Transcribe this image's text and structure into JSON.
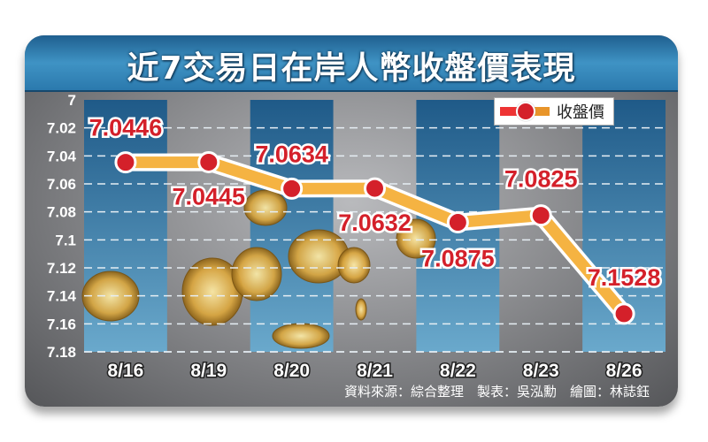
{
  "title": "近7交易日在岸人幣收盤價表現",
  "footer": "資料來源：綜合整理　製表：吳泓勳　繪圖：林誌鈺",
  "colors": {
    "line": "#f5b342",
    "point": "#d4202a",
    "label": "#d4202a",
    "bar": "#2a6c9c",
    "title_bar": "#2b79ad"
  },
  "chart_data": {
    "type": "line",
    "title": "近7交易日在岸人幣收盤價表現",
    "categories": [
      "8/16",
      "8/19",
      "8/20",
      "8/21",
      "8/22",
      "8/23",
      "8/26"
    ],
    "series": [
      {
        "name": "收盤價",
        "values": [
          7.0446,
          7.0445,
          7.0634,
          7.0632,
          7.0875,
          7.0825,
          7.1528
        ]
      }
    ],
    "data_labels": [
      "7.0446",
      "7.0445",
      "7.0634",
      "7.0632",
      "7.0875",
      "7.0825",
      "7.1528"
    ],
    "y_ticks": [
      "7",
      "7.02",
      "7.04",
      "7.06",
      "7.08",
      "7.1",
      "7.12",
      "7.14",
      "7.16",
      "7.18"
    ],
    "ylim": [
      7,
      7.18
    ],
    "y_reversed": true,
    "grid": true,
    "legend": "top-right"
  }
}
